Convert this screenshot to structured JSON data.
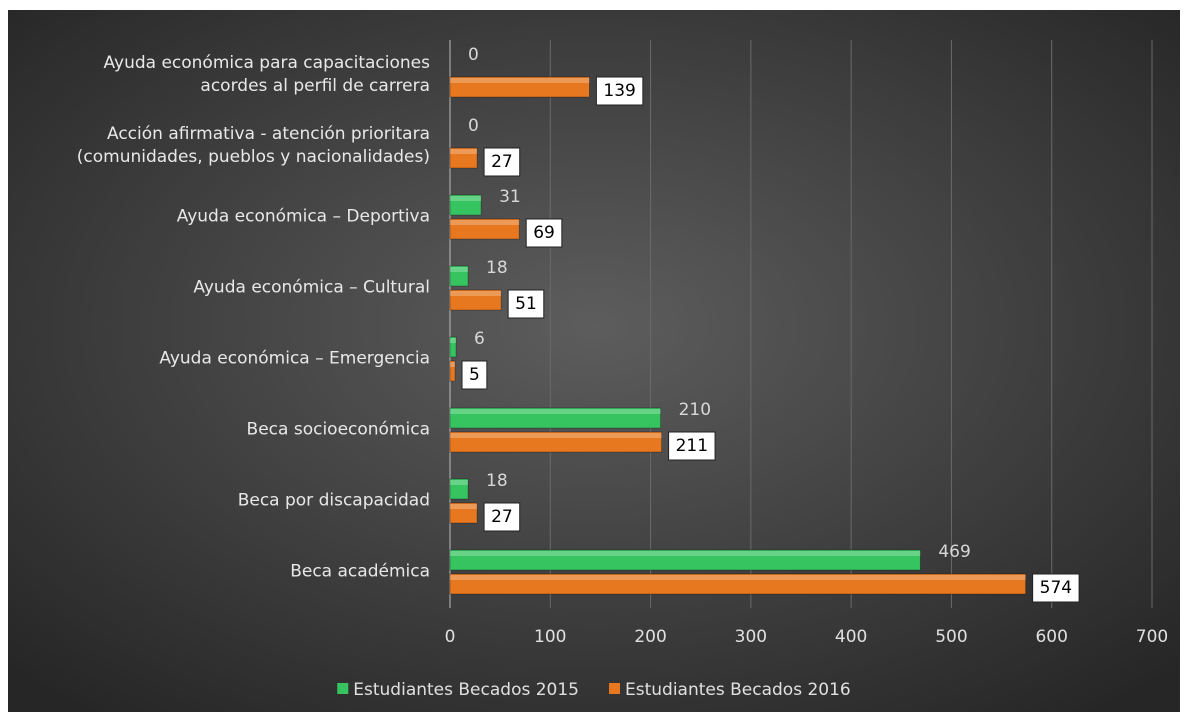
{
  "chart_data": {
    "type": "bar",
    "orientation": "horizontal",
    "categories": [
      "Ayuda económica para capacitaciones\nacordes al perfil de carrera",
      "Acción afirmativa - atención prioritara\n(comunidades, pueblos y nacionalidades)",
      "Ayuda económica – Deportiva",
      "Ayuda económica – Cultural",
      "Ayuda económica – Emergencia",
      "Beca socioeconómica",
      "Beca por discapacidad",
      "Beca académica"
    ],
    "series": [
      {
        "name": "Estudiantes Becados 2015",
        "color": "#35c45f",
        "values": [
          0,
          0,
          31,
          18,
          6,
          210,
          18,
          469
        ]
      },
      {
        "name": "Estudiantes Becados 2016",
        "color": "#e8781f",
        "values": [
          139,
          27,
          69,
          51,
          5,
          211,
          27,
          574
        ]
      }
    ],
    "xlim": [
      0,
      700
    ],
    "xticks": [
      0,
      100,
      200,
      300,
      400,
      500,
      600,
      700
    ],
    "grid": true,
    "legend": "bottom"
  }
}
